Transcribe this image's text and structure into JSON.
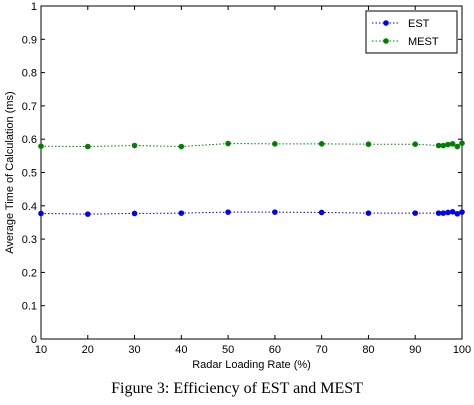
{
  "chart_data": {
    "type": "line",
    "xlabel": "Radar Loading Rate (%)",
    "ylabel": "Average Time of Calculation (ms)",
    "xlim": [
      10,
      100
    ],
    "ylim": [
      0,
      1
    ],
    "xticks": [
      10,
      20,
      30,
      40,
      50,
      60,
      70,
      80,
      90,
      100
    ],
    "yticks": [
      0,
      0.1,
      0.2,
      0.3,
      0.4,
      0.5,
      0.6,
      0.7,
      0.8,
      0.9,
      1
    ],
    "grid": false,
    "legend_position": "top-right",
    "series": [
      {
        "name": "EST",
        "color": "#0000ee",
        "style": "dotted-line-with-dots",
        "x": [
          10,
          20,
          30,
          40,
          50,
          60,
          70,
          80,
          90,
          95,
          96,
          97,
          98,
          99,
          100
        ],
        "y": [
          0.377,
          0.375,
          0.377,
          0.378,
          0.381,
          0.381,
          0.38,
          0.378,
          0.378,
          0.378,
          0.378,
          0.38,
          0.382,
          0.376,
          0.381
        ]
      },
      {
        "name": "MEST",
        "color": "#008000",
        "style": "dotted-line-with-dots",
        "x": [
          10,
          20,
          30,
          40,
          50,
          60,
          70,
          80,
          90,
          95,
          96,
          97,
          98,
          99,
          100
        ],
        "y": [
          0.579,
          0.578,
          0.581,
          0.578,
          0.587,
          0.586,
          0.586,
          0.585,
          0.585,
          0.581,
          0.581,
          0.584,
          0.586,
          0.578,
          0.588
        ]
      }
    ]
  },
  "caption": "Figure 3: Efficiency of EST and MEST"
}
